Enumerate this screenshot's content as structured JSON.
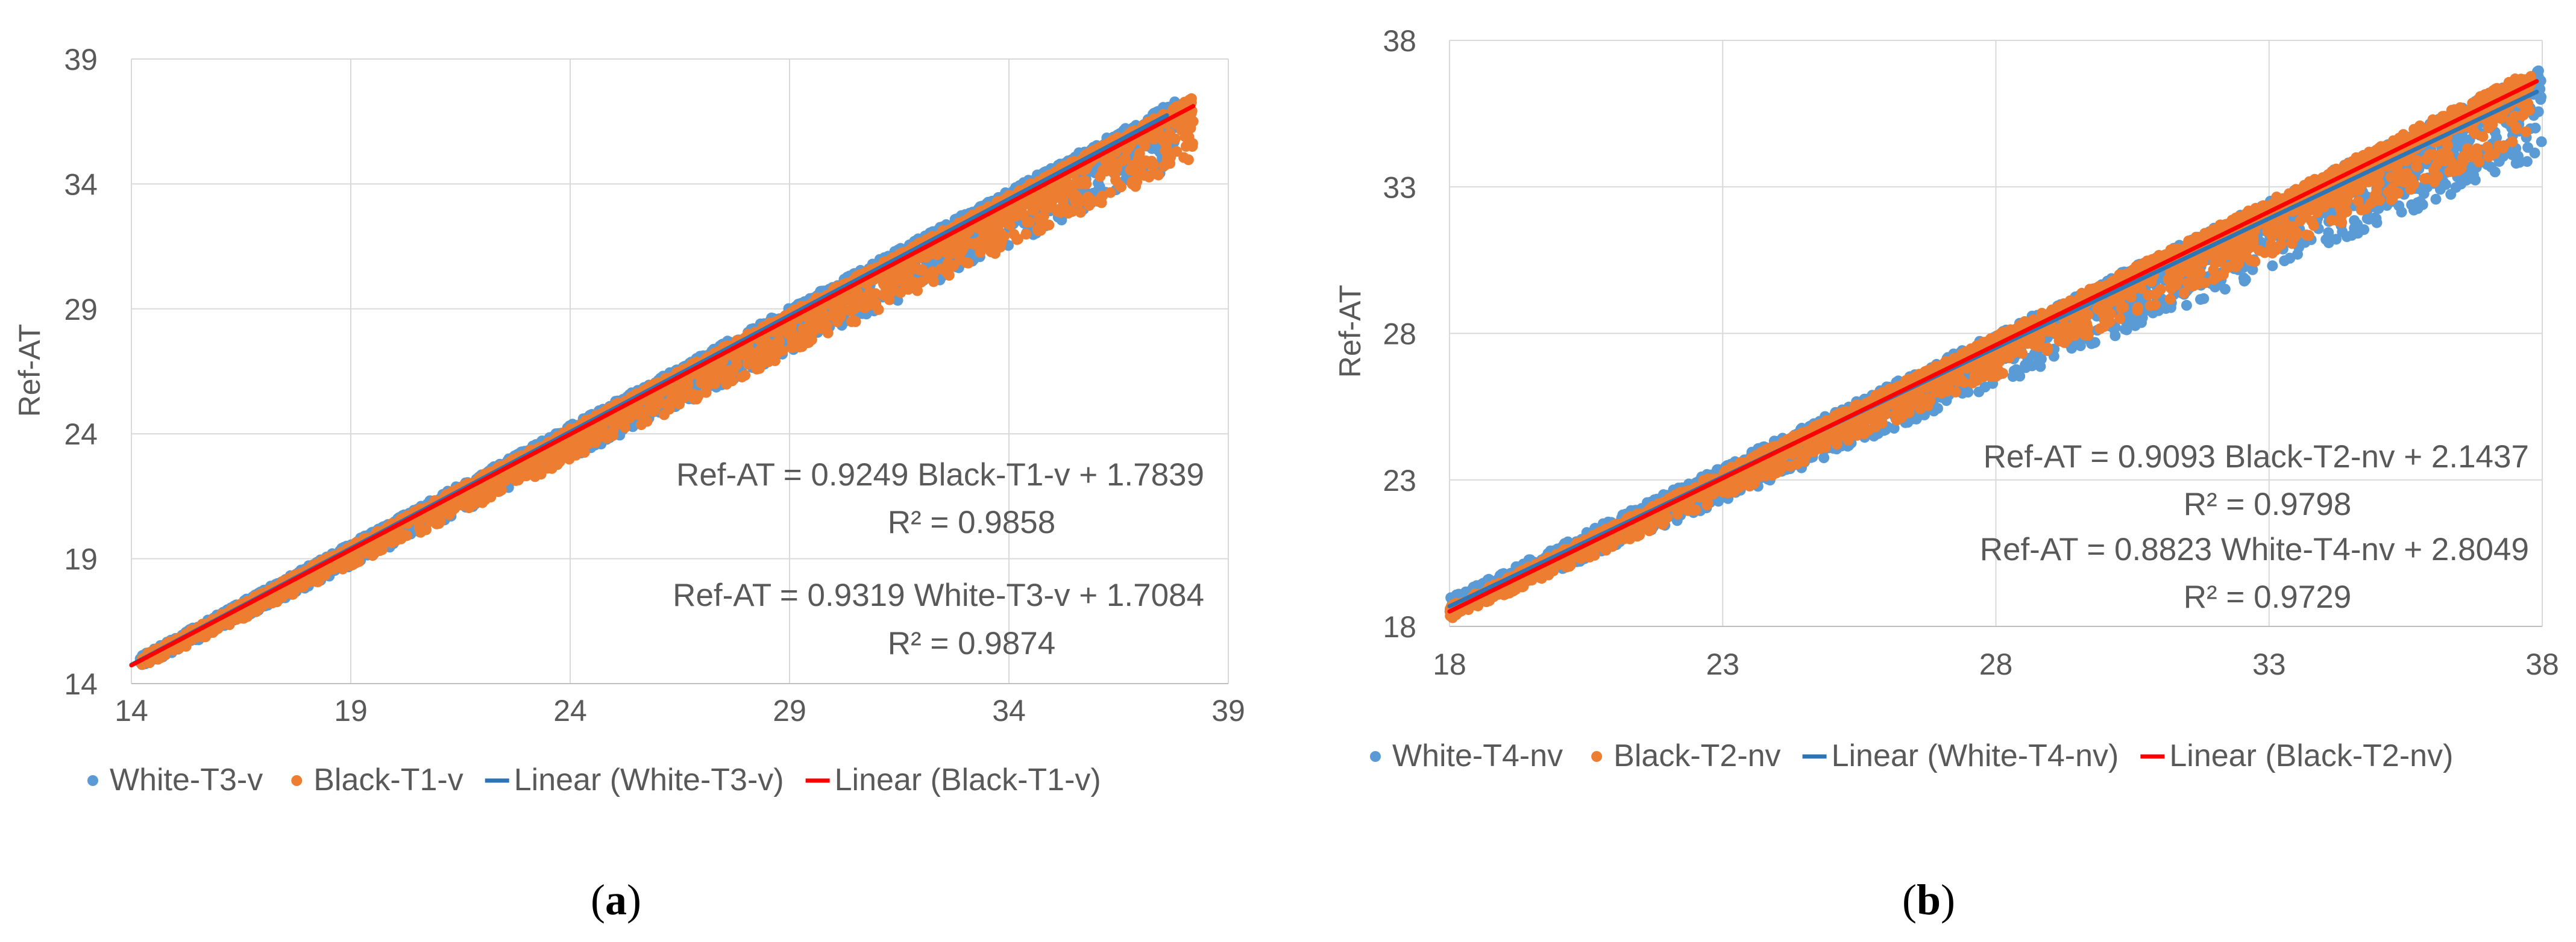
{
  "chart_data": [
    {
      "type": "scatter",
      "panel_label": "a",
      "title": "",
      "xlabel": "",
      "ylabel": "Ref-AT",
      "xlim": [
        14,
        39
      ],
      "ylim": [
        14,
        39
      ],
      "xticks": [
        14,
        19,
        24,
        29,
        34,
        39
      ],
      "yticks": [
        14,
        19,
        24,
        29,
        34,
        39
      ],
      "grid": true,
      "legend_position": "bottom",
      "series": [
        {
          "name": "White-T3-v",
          "kind": "scatter",
          "color": "#5b9bd5",
          "x_range": [
            14.2,
            37.8
          ],
          "fit": {
            "slope": 0.9319,
            "intercept": 1.7084
          },
          "spread_below": 2.2,
          "spread_above": 0.4
        },
        {
          "name": "Black-T1-v",
          "kind": "scatter",
          "color": "#ed7d31",
          "x_range": [
            14.2,
            38.2
          ],
          "fit": {
            "slope": 0.9249,
            "intercept": 1.7839
          },
          "spread_below": 2.1,
          "spread_above": 0.35
        },
        {
          "name": "Linear (White-T3-v)",
          "kind": "trendline",
          "color": "#2e75b6",
          "x_range": [
            14,
            37.6
          ],
          "slope": 0.9319,
          "intercept": 1.7084
        },
        {
          "name": "Linear (Black-T1-v)",
          "kind": "trendline",
          "color": "#ff0000",
          "x_range": [
            14,
            38.2
          ],
          "slope": 0.9249,
          "intercept": 1.7839
        }
      ],
      "annotations": [
        {
          "text": "Ref-AT = 0.9249 Black-T1-v + 1.7839",
          "anchor_x": 37.5,
          "anchor_y": 22.3
        },
        {
          "text": "R² = 0.9858",
          "anchor_x": 30.1,
          "anchor_y": 20.6
        },
        {
          "text": "Ref-AT = 0.9319 White-T3-v + 1.7084",
          "anchor_x": 37.5,
          "anchor_y": 17.4
        },
        {
          "text": "R² = 0.9874",
          "anchor_x": 30.1,
          "anchor_y": 15.7
        }
      ]
    },
    {
      "type": "scatter",
      "panel_label": "b",
      "title": "",
      "xlabel": "",
      "ylabel": "Ref-AT",
      "xlim": [
        18,
        38
      ],
      "ylim": [
        18,
        38
      ],
      "xticks": [
        18,
        23,
        28,
        33,
        38
      ],
      "yticks": [
        18,
        23,
        28,
        33,
        38
      ],
      "grid": true,
      "legend_position": "bottom",
      "series": [
        {
          "name": "White-T4-nv",
          "kind": "scatter",
          "color": "#5b9bd5",
          "x_range": [
            18.0,
            38.0
          ],
          "fit": {
            "slope": 0.8823,
            "intercept": 2.8049
          },
          "spread_below": 2.3,
          "spread_above": 0.7
        },
        {
          "name": "Black-T2-nv",
          "kind": "scatter",
          "color": "#ed7d31",
          "x_range": [
            18.0,
            37.8
          ],
          "fit": {
            "slope": 0.9093,
            "intercept": 2.1437
          },
          "spread_below": 1.9,
          "spread_above": 0.45
        },
        {
          "name": "Linear (White-T4-nv)",
          "kind": "trendline",
          "color": "#2e75b6",
          "x_range": [
            18,
            37.9
          ],
          "slope": 0.8823,
          "intercept": 2.8049
        },
        {
          "name": "Linear (Black-T2-nv)",
          "kind": "trendline",
          "color": "#ff0000",
          "x_range": [
            18,
            37.9
          ],
          "slope": 0.9093,
          "intercept": 2.1437
        }
      ],
      "annotations": [
        {
          "text": "Ref-AT = 0.9093 Black-T2-nv + 2.1437",
          "anchor_x": 37.8,
          "anchor_y": 23.3
        },
        {
          "text": "R² = 0.9798",
          "anchor_x": 30.8,
          "anchor_y": 21.8
        },
        {
          "text": "Ref-AT = 0.8823 White-T4-nv + 2.8049",
          "anchor_x": 37.8,
          "anchor_y": 20.3
        },
        {
          "text": "R² = 0.9729",
          "anchor_x": 30.8,
          "anchor_y": 18.7
        }
      ]
    }
  ]
}
